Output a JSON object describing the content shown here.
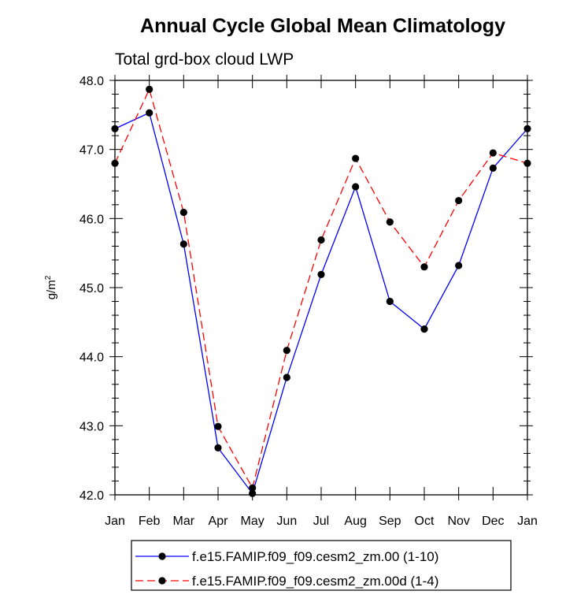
{
  "chart_data": {
    "type": "line",
    "title": "Annual Cycle Global Mean Climatology",
    "subtitle": "Total grd-box cloud LWP",
    "xlabel": "",
    "ylabel": "g/m",
    "ylabel_superscript": "2",
    "categories": [
      "Jan",
      "Feb",
      "Mar",
      "Apr",
      "May",
      "Jun",
      "Jul",
      "Aug",
      "Sep",
      "Oct",
      "Nov",
      "Dec",
      "Jan"
    ],
    "ylim": [
      42.0,
      48.0
    ],
    "yticks": [
      "42.0",
      "43.0",
      "44.0",
      "45.0",
      "46.0",
      "47.0",
      "48.0"
    ],
    "series": [
      {
        "name": "f.e15.FAMIP.f09_f09.cesm2_zm.00 (1-10)",
        "color": "#0000ff",
        "dash": "solid",
        "values": [
          47.3,
          47.53,
          45.63,
          42.68,
          42.02,
          43.7,
          45.19,
          46.46,
          44.8,
          44.4,
          45.32,
          46.73,
          47.3
        ]
      },
      {
        "name": "f.e15.FAMIP.f09_f09.cesm2_zm.00d (1-4)",
        "color": "#ff0000",
        "dash": "dashed",
        "values": [
          46.8,
          47.87,
          46.09,
          42.99,
          42.1,
          44.09,
          45.69,
          46.87,
          45.95,
          45.3,
          46.26,
          46.95,
          46.8
        ]
      }
    ],
    "legend_position": "bottom"
  }
}
